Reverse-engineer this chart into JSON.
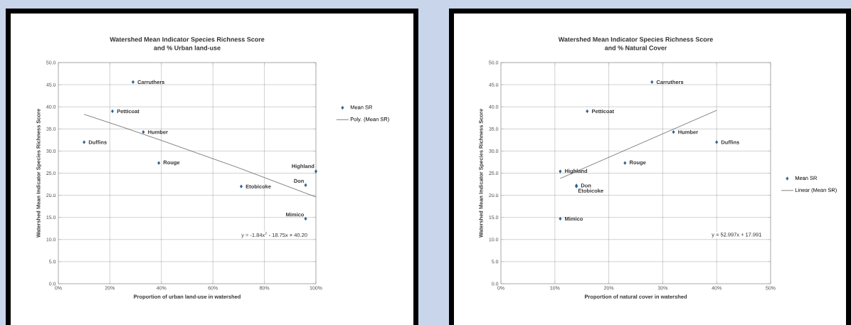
{
  "chart_data": [
    {
      "type": "scatter",
      "title": "Watershed Mean Indicator Species Richness Score",
      "subtitle": "and  % Urban land-use",
      "xlabel": "Proportion of urban land-use in watershed",
      "ylabel": "Watershed Mean Indicator Species Richness Score",
      "series": [
        {
          "name": "Mean SR",
          "color": "#2e5f8f",
          "marker": "diamond",
          "x": [
            0.29,
            0.21,
            0.33,
            0.1,
            0.39,
            0.71,
            1.0,
            0.96,
            0.96
          ],
          "values": [
            45.6,
            39.0,
            34.3,
            32.0,
            27.3,
            22.0,
            25.4,
            22.3,
            14.7
          ]
        },
        {
          "name": "Poly. (Mean SR)",
          "type": "line",
          "color": "#4a4a4a",
          "marker": "none",
          "line_style": "solid",
          "x": [
            0.1,
            0.25,
            0.4,
            0.55,
            0.7,
            0.85,
            1.0
          ],
          "values": [
            38.3,
            35.4,
            32.4,
            29.3,
            26.2,
            22.9,
            19.6
          ]
        }
      ],
      "annotations": [
        {
          "text": "Carruthers",
          "x": 0.29,
          "y": 45.6
        },
        {
          "text": "Petticoat",
          "x": 0.21,
          "y": 39.0
        },
        {
          "text": "Humber",
          "x": 0.33,
          "y": 34.3
        },
        {
          "text": "Duffins",
          "x": 0.1,
          "y": 32.0
        },
        {
          "text": "Rouge",
          "x": 0.39,
          "y": 27.3
        },
        {
          "text": "Etobicoke",
          "x": 0.71,
          "y": 22.0
        },
        {
          "text": "Highland",
          "x": 1.0,
          "y": 25.4
        },
        {
          "text": "Don",
          "x": 0.96,
          "y": 22.3
        },
        {
          "text": "Mimico",
          "x": 0.96,
          "y": 14.7
        },
        "y = -1.84x$^{2}$ - 18.75x + 40.20"
      ],
      "xlim": [
        0,
        1
      ],
      "ylim": [
        0,
        50
      ],
      "xticks": [
        {
          "value": 0,
          "label": "0%"
        },
        {
          "value": 0.2,
          "label": "20%"
        },
        {
          "value": 0.4,
          "label": "40%"
        },
        {
          "value": 0.6,
          "label": "60%"
        },
        {
          "value": 0.8,
          "label": "80%"
        },
        {
          "value": 1,
          "label": "100%"
        }
      ],
      "yticks": [
        {
          "value": 0,
          "label": "0.0"
        },
        {
          "value": 5,
          "label": "5.0"
        },
        {
          "value": 10,
          "label": "10.0"
        },
        {
          "value": 15,
          "label": "15.0"
        },
        {
          "value": 20,
          "label": "20.0"
        },
        {
          "value": 25,
          "label": "25.0"
        },
        {
          "value": 30,
          "label": "30.0"
        },
        {
          "value": 35,
          "label": "35.0"
        },
        {
          "value": 40,
          "label": "40.0"
        },
        {
          "value": 45,
          "label": "45.0"
        },
        {
          "value": 50,
          "label": "50.0"
        }
      ],
      "grid": true,
      "legend": "right"
    },
    {
      "type": "scatter",
      "title": "Watershed Mean Indicator Species Richness Score",
      "subtitle": "and  % Natural Cover",
      "xlabel": "Proportion of natural cover in watershed",
      "ylabel": "Watershed Mean Indicator Species Richness Score",
      "series": [
        {
          "name": "Mean SR",
          "color": "#2e5f8f",
          "marker": "diamond",
          "x": [
            0.28,
            0.16,
            0.32,
            0.4,
            0.23,
            0.11,
            0.14,
            0.14,
            0.11
          ],
          "values": [
            45.6,
            39.0,
            34.3,
            32.0,
            27.3,
            25.4,
            22.2,
            22.0,
            14.7
          ]
        },
        {
          "name": "Linear (Mean SR)",
          "type": "line",
          "color": "#4a4a4a",
          "marker": "none",
          "line_style": "solid",
          "x": [
            0.11,
            0.4
          ],
          "values": [
            23.8,
            39.2
          ]
        }
      ],
      "annotations": [
        {
          "text": "Carruthers",
          "x": 0.28,
          "y": 45.6
        },
        {
          "text": "Petticoat",
          "x": 0.16,
          "y": 39.0
        },
        {
          "text": "Humber",
          "x": 0.32,
          "y": 34.3
        },
        {
          "text": "Duffins",
          "x": 0.4,
          "y": 32.0
        },
        {
          "text": "Rouge",
          "x": 0.23,
          "y": 27.3
        },
        {
          "text": "Highland",
          "x": 0.11,
          "y": 25.4
        },
        {
          "text": "Don",
          "x": 0.14,
          "y": 22.2
        },
        {
          "text": "Etobicoke",
          "x": 0.14,
          "y": 22.0
        },
        {
          "text": "Mimico",
          "x": 0.11,
          "y": 14.7
        },
        "y = 52.997x + 17.991"
      ],
      "xlim": [
        0,
        0.5
      ],
      "ylim": [
        0,
        50
      ],
      "xticks": [
        {
          "value": 0,
          "label": "0%"
        },
        {
          "value": 0.1,
          "label": "10%"
        },
        {
          "value": 0.2,
          "label": "20%"
        },
        {
          "value": 0.3,
          "label": "30%"
        },
        {
          "value": 0.4,
          "label": "40%"
        },
        {
          "value": 0.5,
          "label": "50%"
        }
      ],
      "yticks": [
        {
          "value": 0,
          "label": "0.0"
        },
        {
          "value": 5,
          "label": "5.0"
        },
        {
          "value": 10,
          "label": "10.0"
        },
        {
          "value": 15,
          "label": "15.0"
        },
        {
          "value": 20,
          "label": "20.0"
        },
        {
          "value": 25,
          "label": "25.0"
        },
        {
          "value": 30,
          "label": "30.0"
        },
        {
          "value": 35,
          "label": "35.0"
        },
        {
          "value": 40,
          "label": "40.0"
        },
        {
          "value": 45,
          "label": "45.0"
        },
        {
          "value": 50,
          "label": "50.0"
        }
      ],
      "grid": true,
      "legend": "right"
    }
  ]
}
